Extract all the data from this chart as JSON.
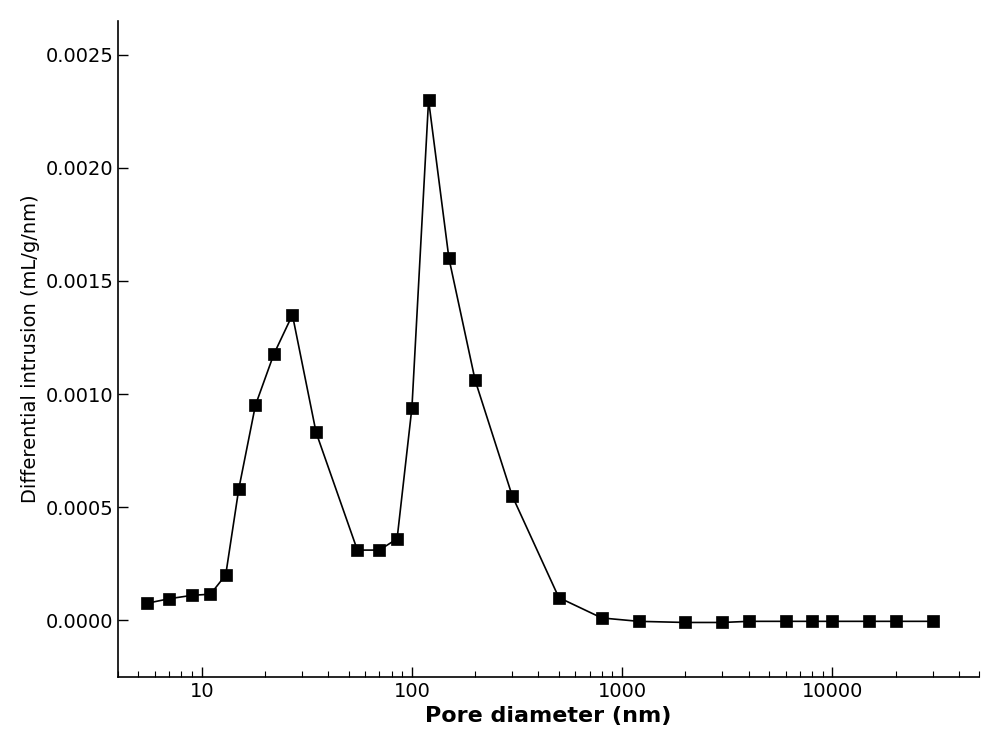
{
  "x": [
    5.5,
    7.0,
    9.0,
    11.0,
    13.0,
    15.0,
    18.0,
    22.0,
    27.0,
    35.0,
    55.0,
    70.0,
    85.0,
    100.0,
    120.0,
    150.0,
    200.0,
    300.0,
    500.0,
    800.0,
    1200.0,
    2000.0,
    3000.0,
    4000.0,
    6000.0,
    8000.0,
    10000.0,
    15000.0,
    20000.0,
    30000.0
  ],
  "y": [
    7.5e-05,
    9.5e-05,
    0.00011,
    0.000115,
    0.0002,
    0.00058,
    0.00095,
    0.001175,
    0.00135,
    0.00083,
    0.00031,
    0.00031,
    0.00036,
    0.00094,
    0.0023,
    0.0016,
    0.00106,
    0.00055,
    0.0001,
    1e-05,
    -5e-06,
    -1e-05,
    -1e-05,
    -5e-06,
    -5e-06,
    -5e-06,
    -5e-06,
    -5e-06,
    -5e-06,
    -5e-06
  ],
  "xlabel": "Pore diameter (nm)",
  "ylabel": "Differential intrusion (mL/g/nm)",
  "xlim": [
    4,
    50000
  ],
  "ylim": [
    -0.00025,
    0.00265
  ],
  "yticks": [
    0.0,
    0.0005,
    0.001,
    0.0015,
    0.002,
    0.0025
  ],
  "xtick_labels": [
    "10",
    "100",
    "1000",
    "10000"
  ],
  "xtick_positions": [
    10,
    100,
    1000,
    10000
  ],
  "marker": "s",
  "marker_size": 8,
  "line_color": "#000000",
  "marker_color": "#000000",
  "line_style": "-",
  "line_width": 1.2,
  "xlabel_fontsize": 16,
  "ylabel_fontsize": 14,
  "tick_fontsize": 14,
  "background_color": "#ffffff"
}
